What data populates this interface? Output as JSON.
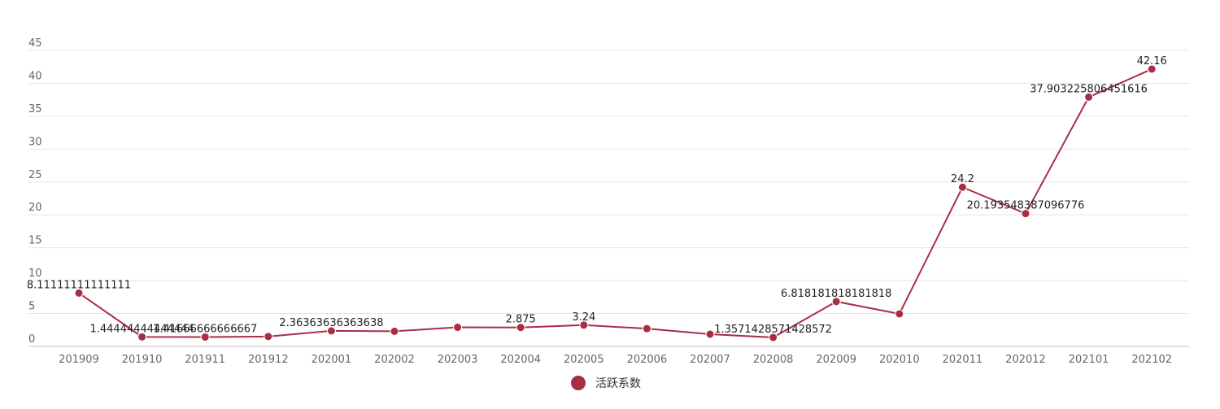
{
  "chart_data": {
    "type": "line",
    "categories": [
      "201909",
      "201910",
      "201911",
      "201912",
      "202001",
      "202002",
      "202003",
      "202004",
      "202005",
      "202006",
      "202007",
      "202008",
      "202009",
      "202010",
      "202011",
      "202012",
      "202101",
      "202102"
    ],
    "series": [
      {
        "name": "活跃系数",
        "color": "#a82e45",
        "values": [
          8.11111111111111,
          1.44444444444444,
          1.41666666666667,
          1.5,
          2.36363636363636,
          2.3,
          2.9,
          2.875,
          3.24,
          2.7,
          1.85714285714286,
          1.35714285714286,
          6.81818181818182,
          4.95,
          24.2,
          20.1935483870968,
          37.9032258064516,
          42.16
        ],
        "labels": [
          "8.11111111111111",
          "1.44444444444444",
          "1.41666666666667",
          "",
          "2.36363636363638",
          "",
          "",
          "2.875",
          "3.24",
          "",
          "",
          "1.3571428571428572",
          "6.818181818181818",
          "",
          "24.2",
          "20.193548387096776",
          "37.903225806451616",
          "42.16"
        ]
      }
    ],
    "y_ticks": [
      "0",
      "5",
      "10",
      "15",
      "20",
      "25",
      "30",
      "35",
      "40",
      "45"
    ],
    "ylim": [
      0,
      45
    ],
    "grid": true,
    "legend": "bottom-center"
  }
}
